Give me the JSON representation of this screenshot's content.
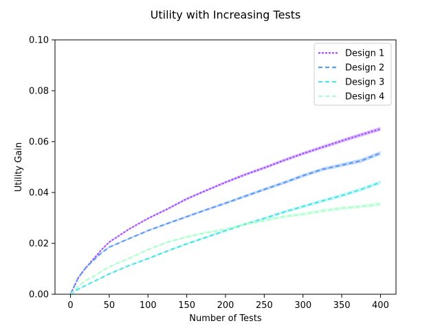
{
  "chart_data": {
    "type": "line",
    "title": "Utility with Increasing Tests",
    "xlabel": "Number of Tests",
    "ylabel": "Utility Gain",
    "xlim": [
      -20,
      420
    ],
    "ylim": [
      0,
      0.1
    ],
    "xticks": [
      0,
      50,
      100,
      150,
      200,
      250,
      300,
      350,
      400
    ],
    "yticks": [
      0.0,
      0.02,
      0.04,
      0.06,
      0.08,
      0.1
    ],
    "xtick_labels": [
      "0",
      "50",
      "100",
      "150",
      "200",
      "250",
      "300",
      "350",
      "400"
    ],
    "ytick_labels": [
      "0.00",
      "0.02",
      "0.04",
      "0.06",
      "0.08",
      "0.10"
    ],
    "grid": false,
    "legend_position": "top-right",
    "x": [
      0,
      10,
      20,
      30,
      40,
      50,
      75,
      100,
      125,
      150,
      175,
      200,
      225,
      250,
      275,
      300,
      325,
      350,
      375,
      400
    ],
    "series": [
      {
        "name": "Design 1",
        "color": "#a64dff",
        "band_color": "#c9a6ff",
        "values": [
          0.0,
          0.0065,
          0.0105,
          0.014,
          0.0175,
          0.0205,
          0.0255,
          0.0298,
          0.0335,
          0.0375,
          0.0408,
          0.044,
          0.047,
          0.0497,
          0.0526,
          0.0553,
          0.0578,
          0.0603,
          0.0627,
          0.065
        ]
      },
      {
        "name": "Design 2",
        "color": "#5a9cf5",
        "band_color": "#a9c8f7",
        "values": [
          0.0,
          0.0065,
          0.0105,
          0.0135,
          0.0163,
          0.0185,
          0.0218,
          0.025,
          0.0278,
          0.0305,
          0.0332,
          0.0358,
          0.0385,
          0.0412,
          0.0438,
          0.0466,
          0.0491,
          0.0508,
          0.0525,
          0.0555
        ]
      },
      {
        "name": "Design 3",
        "color": "#4de3e6",
        "band_color": "#b3f2f3",
        "values": [
          0.0,
          0.002,
          0.0035,
          0.005,
          0.0065,
          0.008,
          0.0112,
          0.014,
          0.017,
          0.0198,
          0.0224,
          0.025,
          0.0275,
          0.0298,
          0.0323,
          0.0345,
          0.0367,
          0.0388,
          0.0412,
          0.044
        ]
      },
      {
        "name": "Design 4",
        "color": "#aaffcc",
        "band_color": "#d6fde6",
        "values": [
          0.0,
          0.003,
          0.0055,
          0.007,
          0.009,
          0.0108,
          0.014,
          0.0175,
          0.0205,
          0.0225,
          0.0242,
          0.0255,
          0.0275,
          0.029,
          0.0305,
          0.0315,
          0.0328,
          0.0338,
          0.0345,
          0.0355
        ]
      }
    ]
  }
}
